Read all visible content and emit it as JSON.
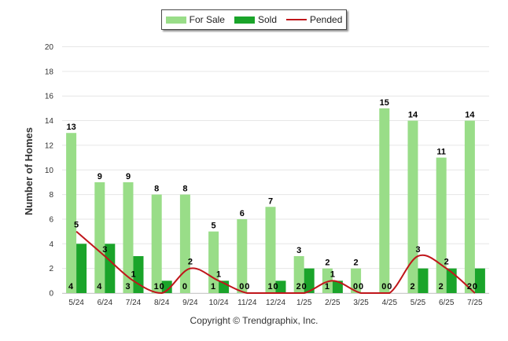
{
  "chart_data": {
    "type": "bar",
    "categories": [
      "5/24",
      "6/24",
      "7/24",
      "8/24",
      "9/24",
      "10/24",
      "11/24",
      "12/24",
      "1/25",
      "2/25",
      "3/25",
      "4/25",
      "5/25",
      "6/25",
      "7/25"
    ],
    "series": [
      {
        "name": "For Sale",
        "type": "bar",
        "color": "#99dd88",
        "values": [
          13,
          9,
          9,
          8,
          8,
          5,
          6,
          7,
          3,
          2,
          2,
          15,
          14,
          11,
          14
        ]
      },
      {
        "name": "Sold",
        "type": "bar",
        "color": "#1aa42a",
        "values": [
          4,
          4,
          3,
          1,
          0,
          1,
          0,
          1,
          2,
          1,
          0,
          0,
          2,
          2,
          2
        ]
      },
      {
        "name": "Pended",
        "type": "line",
        "color": "#c0161b",
        "values": [
          5,
          3,
          1,
          0,
          2,
          1,
          0,
          0,
          0,
          1,
          0,
          0,
          3,
          2,
          0
        ]
      }
    ],
    "ylabel": "Number of Homes",
    "xlabel": "",
    "ylim": [
      0,
      20
    ],
    "yticks": [
      0,
      2,
      4,
      6,
      8,
      10,
      12,
      14,
      16,
      18,
      20
    ],
    "grid": true,
    "legend_position": "top-center"
  },
  "footer": {
    "copyright": "Copyright © Trendgraphix, Inc."
  }
}
